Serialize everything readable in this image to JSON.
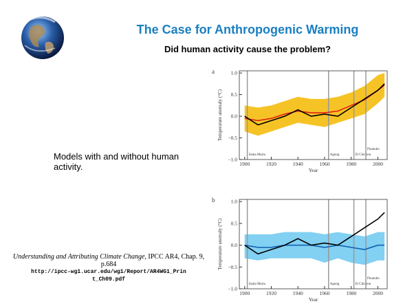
{
  "slide": {
    "title": "The Case for Anthropogenic Warming",
    "subtitle": "Did human activity cause the problem?",
    "body": "Models with and without human activity.",
    "citation": {
      "title": "Understanding and Attributing Climate Change",
      "source": ", IPCC AR4, Chap. 9, p.684",
      "url": "http://ipcc-wg1.ucar.edu/wg1/Report/AR4WG1_Print_Ch09.pdf"
    }
  },
  "chart_data": [
    {
      "type": "line",
      "panel": "a",
      "xlabel": "Year",
      "ylabel": "Temperature anomaly (°C)",
      "xlim": [
        1896,
        2007
      ],
      "ylim": [
        -1.0,
        1.05
      ],
      "xticks": [
        1900,
        1920,
        1940,
        1960,
        1980,
        2000
      ],
      "yticks": [
        {
          "value": -1,
          "label": "−1.0"
        },
        {
          "value": -0.5,
          "label": "−0.5"
        },
        {
          "value": 0,
          "label": "0.0"
        },
        0.5,
        {
          "value": 1,
          "label": "1.0"
        }
      ],
      "x": [
        1900,
        1910,
        1920,
        1930,
        1940,
        1950,
        1960,
        1970,
        1980,
        1990,
        2000,
        2005
      ],
      "band": {
        "color": "#f5b800",
        "lower": [
          -0.35,
          -0.45,
          -0.35,
          -0.25,
          -0.15,
          -0.2,
          -0.25,
          -0.15,
          -0.05,
          0.05,
          0.3,
          0.45
        ],
        "upper": [
          0.25,
          0.2,
          0.25,
          0.35,
          0.45,
          0.4,
          0.4,
          0.45,
          0.55,
          0.7,
          0.95,
          1.0
        ]
      },
      "series": [
        {
          "color": "#e02010",
          "values": [
            -0.05,
            -0.1,
            -0.05,
            0.05,
            0.12,
            0.08,
            0.08,
            0.12,
            0.25,
            0.38,
            0.6,
            0.72
          ]
        },
        {
          "color": "#000000",
          "values": [
            0.0,
            -0.2,
            -0.1,
            0.0,
            0.15,
            0.0,
            0.05,
            0.0,
            0.2,
            0.4,
            0.6,
            0.75
          ]
        }
      ],
      "annotations": [
        {
          "text": "Santa Maria",
          "x": 1902
        },
        {
          "text": "Agung",
          "x": 1963
        },
        {
          "text": "El Chichon",
          "x": 1982
        },
        {
          "text": "Pinatubo",
          "x": 1991
        }
      ]
    },
    {
      "type": "line",
      "panel": "b",
      "xlabel": "Year",
      "ylabel": "Temperature anomaly (°C)",
      "xlim": [
        1896,
        2007
      ],
      "ylim": [
        -1.0,
        1.05
      ],
      "xticks": [
        1900,
        1920,
        1940,
        1960,
        1980,
        2000
      ],
      "yticks": [
        {
          "value": -1,
          "label": "−1.0"
        },
        {
          "value": -0.5,
          "label": "−0.5"
        },
        {
          "value": 0,
          "label": "0.0"
        },
        0.5,
        {
          "value": 1,
          "label": "1.0"
        }
      ],
      "x": [
        1900,
        1910,
        1920,
        1930,
        1940,
        1950,
        1960,
        1970,
        1980,
        1990,
        2000,
        2005
      ],
      "band": {
        "color": "#6cc8f0",
        "lower": [
          -0.3,
          -0.35,
          -0.3,
          -0.3,
          -0.3,
          -0.3,
          -0.4,
          -0.3,
          -0.4,
          -0.45,
          -0.35,
          -0.35
        ],
        "upper": [
          0.25,
          0.25,
          0.25,
          0.3,
          0.3,
          0.3,
          0.25,
          0.3,
          0.25,
          0.2,
          0.3,
          0.3
        ]
      },
      "series": [
        {
          "color": "#1060b0",
          "values": [
            0.0,
            -0.05,
            -0.05,
            0.0,
            0.0,
            0.0,
            -0.05,
            0.0,
            -0.05,
            -0.1,
            0.0,
            0.0
          ]
        },
        {
          "color": "#000000",
          "values": [
            0.0,
            -0.2,
            -0.1,
            0.0,
            0.15,
            0.0,
            0.05,
            0.0,
            0.2,
            0.4,
            0.6,
            0.75
          ]
        }
      ],
      "annotations": [
        {
          "text": "Santa Maria",
          "x": 1902
        },
        {
          "text": "Agung",
          "x": 1963
        },
        {
          "text": "El Chichon",
          "x": 1982
        },
        {
          "text": "Pinatubo",
          "x": 1991
        }
      ]
    }
  ]
}
